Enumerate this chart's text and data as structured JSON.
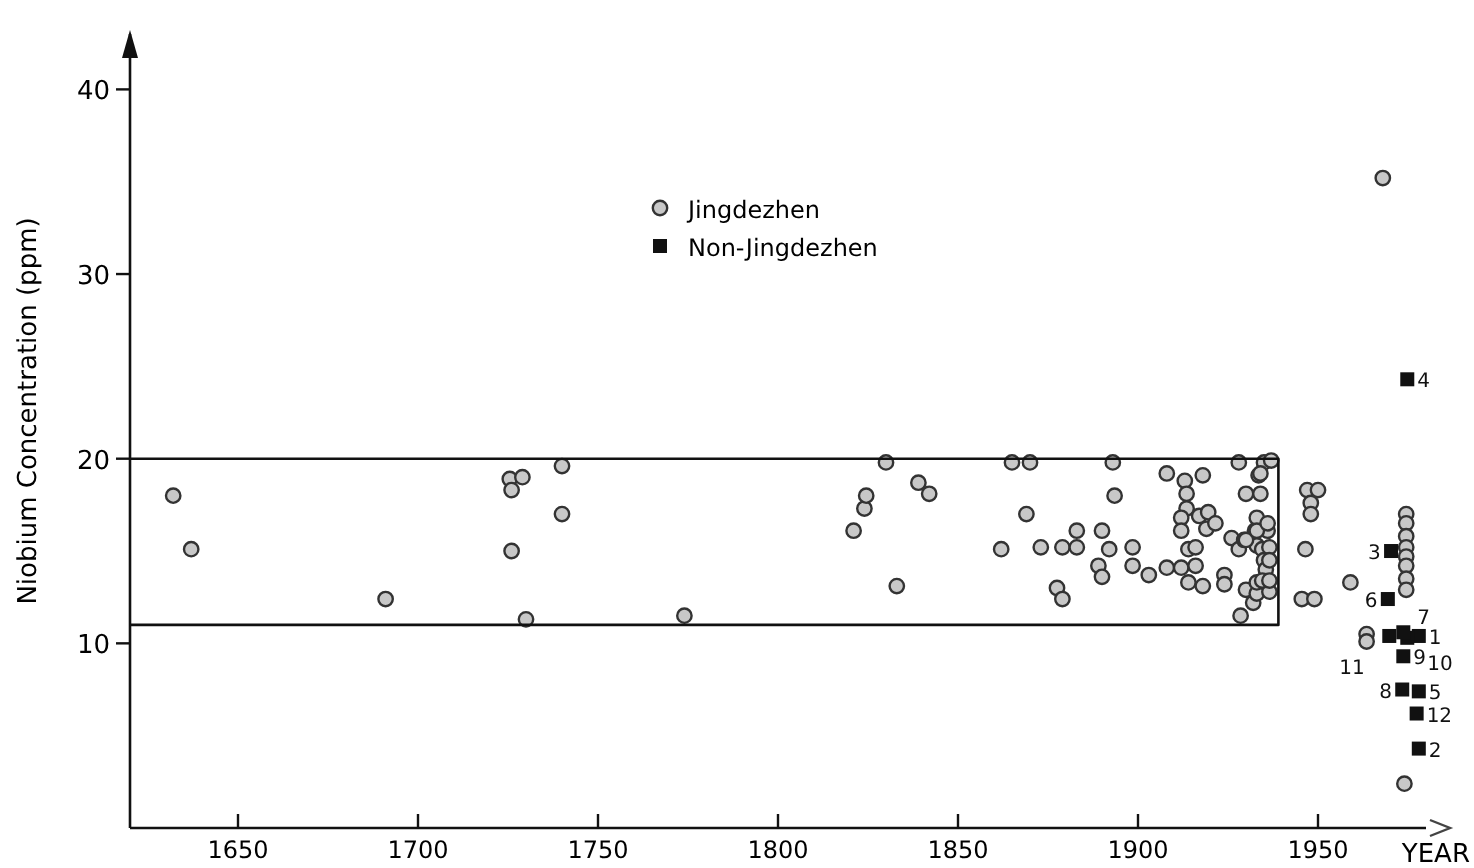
{
  "chart_data": {
    "type": "scatter",
    "xlabel": "YEAR",
    "ylabel": "Niobium Concentration (ppm)",
    "xlim": [
      1620,
      1980
    ],
    "ylim": [
      0,
      43
    ],
    "xticks": [
      1650,
      1700,
      1750,
      1800,
      1850,
      1900,
      1950
    ],
    "yticks": [
      10,
      20,
      30,
      40
    ],
    "grid": false,
    "legend": "top",
    "series": [
      {
        "name": "Jingdezhen",
        "color": "#333333",
        "marker": "circle",
        "x": [
          1632,
          1637,
          1691,
          1725.5,
          1729,
          1726,
          1726,
          1730,
          1740,
          1740,
          1774,
          1830,
          1821,
          1824,
          1824.5,
          1833,
          1839,
          1842,
          1862,
          1865,
          1870,
          1869,
          1873,
          1877.5,
          1879,
          1879,
          1883,
          1883,
          1889,
          1890,
          1890,
          1892,
          1893,
          1893.5,
          1898.5,
          1898.5,
          1903,
          1908,
          1908,
          1912,
          1913,
          1913.5,
          1913.5,
          1912,
          1912,
          1914,
          1914,
          1916,
          1916,
          1917,
          1918,
          1918,
          1919,
          1919.5,
          1921.5,
          1924,
          1924,
          1926,
          1928,
          1928.5,
          1928,
          1929.5,
          1930,
          1930,
          1932,
          1933,
          1933,
          1933,
          1932.5,
          1933,
          1933.5,
          1934,
          1934.5,
          1935,
          1935,
          1935.5,
          1936,
          1936.5,
          1937,
          1934,
          1930,
          1933,
          1936,
          1936.5,
          1936.5,
          1934.5,
          1936.5,
          1947,
          1950,
          1948,
          1948,
          1946.5,
          1945.5,
          1949,
          1959,
          1963.5,
          1963.5,
          1968,
          1974,
          1974.5,
          1974.5,
          1974.5,
          1974.5,
          1974.5,
          1974.5,
          1974.5,
          1974.5
        ],
        "values": [
          18,
          15.1,
          12.4,
          18.9,
          19,
          18.3,
          15,
          11.3,
          19.6,
          17,
          11.5,
          19.8,
          16.1,
          17.3,
          18,
          13.1,
          18.7,
          18.1,
          15.1,
          19.8,
          19.8,
          17,
          15.2,
          13,
          12.4,
          15.2,
          15.2,
          16.1,
          14.2,
          13.6,
          16.1,
          15.1,
          19.8,
          18,
          15.2,
          14.2,
          13.7,
          14.1,
          19.2,
          14.1,
          18.8,
          18.1,
          17.3,
          16.8,
          16.1,
          13.3,
          15.1,
          15.2,
          14.2,
          16.9,
          19.1,
          13.1,
          16.2,
          17.1,
          16.5,
          13.7,
          13.2,
          15.7,
          19.8,
          11.5,
          15.1,
          15.6,
          18.1,
          12.9,
          12.2,
          12.7,
          13.3,
          15.3,
          16.1,
          16.8,
          19.1,
          18.1,
          15.1,
          19.8,
          14.5,
          14,
          16.1,
          12.8,
          19.9,
          19.2,
          15.6,
          16.1,
          16.5,
          15.2,
          14.5,
          13.4,
          13.4,
          18.3,
          18.3,
          17.6,
          17,
          15.1,
          12.4,
          12.4,
          13.3,
          10.5,
          10.1,
          35.2,
          2.4,
          17,
          16.5,
          15.8,
          15.2,
          14.7,
          14.2,
          13.5,
          12.9
        ]
      },
      {
        "name": "Non-Jingdezhen",
        "color": "#111111",
        "marker": "square",
        "x": [
          1978,
          1978,
          1970.3,
          1974.8,
          1978,
          1969.4,
          1974.8,
          1973.4,
          1973.7,
          1973.7,
          1969.8,
          1977.4
        ],
        "values": [
          10.4,
          4.3,
          15,
          24.3,
          7.4,
          12.4,
          10.3,
          7.5,
          9.3,
          10.6,
          10.4,
          6.2
        ]
      },
      {
        "type": "line",
        "color": "#111111",
        "marker": "none",
        "x": [
          1620,
          1939,
          1939,
          1620
        ],
        "values": [
          20,
          20,
          11,
          11
        ]
      }
    ],
    "annotations": [
      {
        "text": "1",
        "x": 1978,
        "y": 10.4
      },
      {
        "text": "2",
        "x": 1978,
        "y": 4.3
      },
      {
        "text": "3",
        "x": 1970.3,
        "y": 15
      },
      {
        "text": "4",
        "x": 1974.8,
        "y": 24.3
      },
      {
        "text": "5",
        "x": 1978,
        "y": 7.4
      },
      {
        "text": "6",
        "x": 1969.4,
        "y": 12.4
      },
      {
        "text": "7",
        "x": 1974.8,
        "y": 10.3
      },
      {
        "text": "8",
        "x": 1973.4,
        "y": 7.5
      },
      {
        "text": "9",
        "x": 1973.7,
        "y": 9.3
      },
      {
        "text": "10",
        "x": 1973.7,
        "y": 10.6
      },
      {
        "text": "11",
        "x": 1969.8,
        "y": 10.4
      },
      {
        "text": "12",
        "x": 1977.4,
        "y": 6.2
      }
    ]
  }
}
